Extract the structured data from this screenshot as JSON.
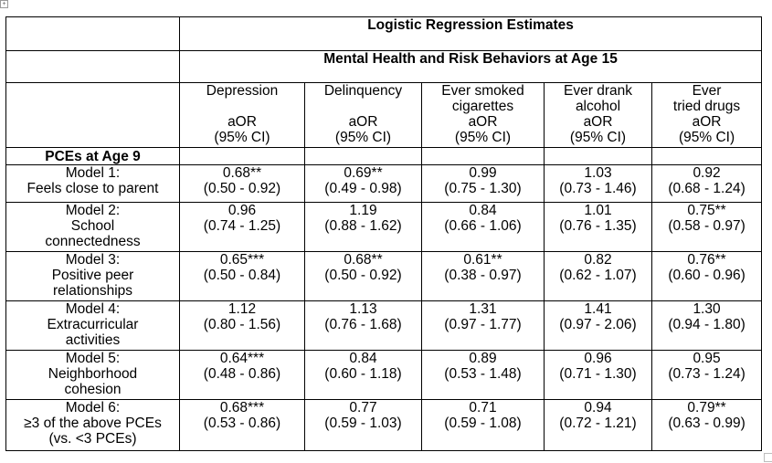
{
  "header": {
    "title": "Logistic Regression Estimates",
    "subtitle": "Mental Health and Risk Behaviors at Age 15"
  },
  "columns": [
    {
      "label_lines": [
        "Depression",
        ""
      ],
      "stat": "aOR",
      "ci": "(95% CI)"
    },
    {
      "label_lines": [
        "Delinquency",
        ""
      ],
      "stat": "aOR",
      "ci": "(95% CI)"
    },
    {
      "label_lines": [
        "Ever smoked",
        "cigarettes"
      ],
      "stat": "aOR",
      "ci": "(95% CI)"
    },
    {
      "label_lines": [
        "Ever drank",
        "alcohol"
      ],
      "stat": "aOR",
      "ci": "(95% CI)"
    },
    {
      "label_lines": [
        "Ever",
        "tried drugs"
      ],
      "stat": "aOR",
      "ci": "(95% CI)"
    }
  ],
  "section_label": "PCEs at Age 9",
  "rows": [
    {
      "label_lines": [
        "Model 1:",
        "Feels close to parent"
      ],
      "cells": [
        [
          "0.68**",
          "(0.50 - 0.92)"
        ],
        [
          "0.69**",
          "(0.49 - 0.98)"
        ],
        [
          "0.99",
          "(0.75 - 1.30)"
        ],
        [
          "1.03",
          "(0.73 - 1.46)"
        ],
        [
          "0.92",
          "(0.68 - 1.24)"
        ]
      ]
    },
    {
      "label_lines": [
        "Model 2:",
        "School",
        "connectedness"
      ],
      "cells": [
        [
          "0.96",
          "(0.74 - 1.25)"
        ],
        [
          "1.19",
          "(0.88 - 1.62)"
        ],
        [
          "0.84",
          "(0.66 - 1.06)"
        ],
        [
          "1.01",
          "(0.76 - 1.35)"
        ],
        [
          "0.75**",
          "(0.58 - 0.97)"
        ]
      ]
    },
    {
      "label_lines": [
        "Model 3:",
        "Positive peer",
        "relationships"
      ],
      "cells": [
        [
          "0.65***",
          "(0.50 - 0.84)"
        ],
        [
          "0.68**",
          "(0.50 - 0.92)"
        ],
        [
          "0.61**",
          "(0.38 - 0.97)"
        ],
        [
          "0.82",
          "(0.62 - 1.07)"
        ],
        [
          "0.76**",
          "(0.60 - 0.96)"
        ]
      ]
    },
    {
      "label_lines": [
        "Model 4:",
        "Extracurricular",
        "activities"
      ],
      "cells": [
        [
          "1.12",
          "(0.80 - 1.56)"
        ],
        [
          "1.13",
          "(0.76 - 1.68)"
        ],
        [
          "1.31",
          "(0.97 - 1.77)"
        ],
        [
          "1.41",
          "(0.97 - 2.06)"
        ],
        [
          "1.30",
          "(0.94 - 1.80)"
        ]
      ]
    },
    {
      "label_lines": [
        "Model 5:",
        "Neighborhood",
        "cohesion"
      ],
      "cells": [
        [
          "0.64***",
          "(0.48 - 0.86)"
        ],
        [
          "0.84",
          "(0.60 - 1.18)"
        ],
        [
          "0.89",
          "(0.53 - 1.48)"
        ],
        [
          "0.96",
          "(0.71 - 1.30)"
        ],
        [
          "0.95",
          "(0.73 - 1.24)"
        ]
      ]
    },
    {
      "label_lines": [
        "Model 6:",
        "≥3 of the above PCEs",
        "(vs. <3 PCEs)"
      ],
      "cells": [
        [
          "0.68***",
          "(0.53 - 0.86)"
        ],
        [
          "0.77",
          "(0.59 - 1.03)"
        ],
        [
          "0.71",
          "(0.59 - 1.08)"
        ],
        [
          "0.94",
          "(0.72 - 1.21)"
        ],
        [
          "0.79**",
          "(0.63 - 0.99)"
        ]
      ]
    }
  ]
}
